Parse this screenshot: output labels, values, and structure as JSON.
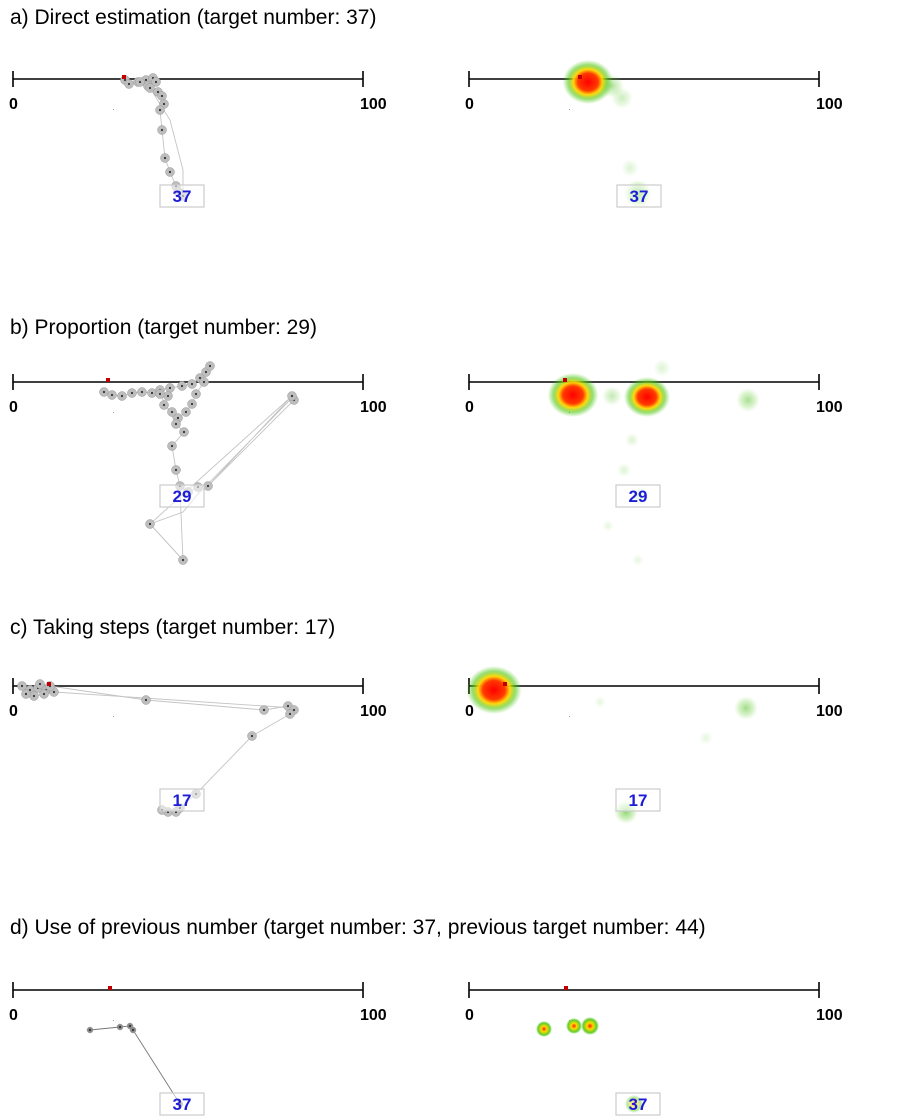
{
  "panels": [
    {
      "id": "a",
      "title": "a) Direct estimation (target number: 37)",
      "axis_min_label": "0",
      "axis_max_label": "100",
      "target_label": "37",
      "scanpath": [
        [
          125,
          80
        ],
        [
          129,
          84
        ],
        [
          138,
          82
        ],
        [
          146,
          80
        ],
        [
          153,
          78
        ],
        [
          156,
          82
        ],
        [
          148,
          86
        ],
        [
          140,
          82
        ],
        [
          150,
          88
        ],
        [
          158,
          92
        ],
        [
          162,
          96
        ],
        [
          164,
          104
        ],
        [
          160,
          110
        ],
        [
          162,
          130
        ],
        [
          165,
          158
        ],
        [
          170,
          172
        ],
        [
          176,
          186
        ],
        [
          180,
          193
        ],
        [
          183,
          196
        ],
        [
          178,
          192
        ]
      ],
      "extra_path": [
        [
          150,
          88
        ],
        [
          170,
          120
        ],
        [
          183,
          170
        ],
        [
          183,
          196
        ]
      ],
      "heat": [
        {
          "x": 588,
          "y": 82,
          "r": 22,
          "a": 1.0,
          "core": true
        },
        {
          "x": 612,
          "y": 86,
          "r": 12,
          "a": 0.45
        },
        {
          "x": 622,
          "y": 98,
          "r": 11,
          "a": 0.3
        },
        {
          "x": 630,
          "y": 168,
          "r": 9,
          "a": 0.2
        },
        {
          "x": 638,
          "y": 194,
          "r": 14,
          "a": 0.8
        }
      ]
    },
    {
      "id": "b",
      "title": "b) Proportion (target number: 29)",
      "axis_min_label": "0",
      "axis_max_label": "100",
      "target_label": "29",
      "scanpath": [
        [
          104,
          392
        ],
        [
          112,
          395
        ],
        [
          122,
          396
        ],
        [
          132,
          393
        ],
        [
          142,
          392
        ],
        [
          152,
          393
        ],
        [
          160,
          390
        ],
        [
          170,
          388
        ],
        [
          182,
          386
        ],
        [
          192,
          384
        ],
        [
          200,
          378
        ],
        [
          206,
          372
        ],
        [
          210,
          366
        ],
        [
          204,
          382
        ],
        [
          196,
          394
        ],
        [
          192,
          404
        ],
        [
          186,
          412
        ],
        [
          178,
          418
        ],
        [
          172,
          412
        ],
        [
          164,
          405
        ],
        [
          168,
          396
        ],
        [
          160,
          394
        ],
        [
          176,
          424
        ],
        [
          184,
          432
        ],
        [
          172,
          446
        ],
        [
          176,
          470
        ],
        [
          180,
          486
        ],
        [
          188,
          492
        ],
        [
          198,
          487
        ],
        [
          208,
          486
        ],
        [
          294,
          400
        ],
        [
          292,
          396
        ],
        [
          150,
          524
        ],
        [
          183,
          560
        ]
      ],
      "extra_path": [
        [
          208,
          486
        ],
        [
          292,
          396
        ],
        [
          290,
          400
        ],
        [
          198,
          494
        ],
        [
          183,
          512
        ],
        [
          150,
          524
        ],
        [
          183,
          560
        ],
        [
          180,
          490
        ]
      ],
      "heat": [
        {
          "x": 573,
          "y": 395,
          "r": 22,
          "a": 1.0,
          "core": true
        },
        {
          "x": 647,
          "y": 397,
          "r": 20,
          "a": 1.0,
          "core": true
        },
        {
          "x": 612,
          "y": 396,
          "r": 10,
          "a": 0.35
        },
        {
          "x": 662,
          "y": 368,
          "r": 9,
          "a": 0.2
        },
        {
          "x": 748,
          "y": 400,
          "r": 12,
          "a": 0.5
        },
        {
          "x": 632,
          "y": 440,
          "r": 7,
          "a": 0.2
        },
        {
          "x": 624,
          "y": 470,
          "r": 7,
          "a": 0.2
        },
        {
          "x": 640,
          "y": 496,
          "r": 10,
          "a": 0.35
        },
        {
          "x": 608,
          "y": 526,
          "r": 6,
          "a": 0.15
        },
        {
          "x": 638,
          "y": 560,
          "r": 6,
          "a": 0.15
        }
      ]
    },
    {
      "id": "c",
      "title": "c) Taking steps (target number: 17)",
      "axis_min_label": "0",
      "axis_max_label": "100",
      "target_label": "17",
      "scanpath": [
        [
          22,
          686
        ],
        [
          30,
          690
        ],
        [
          38,
          688
        ],
        [
          46,
          690
        ],
        [
          54,
          692
        ],
        [
          44,
          694
        ],
        [
          34,
          696
        ],
        [
          26,
          694
        ],
        [
          40,
          684
        ],
        [
          50,
          686
        ],
        [
          146,
          700
        ],
        [
          264,
          710
        ],
        [
          288,
          706
        ],
        [
          294,
          710
        ],
        [
          290,
          714
        ],
        [
          252,
          736
        ],
        [
          196,
          794
        ],
        [
          180,
          808
        ],
        [
          168,
          812
        ],
        [
          162,
          810
        ],
        [
          176,
          812
        ]
      ],
      "extra_path": [
        [
          54,
          692
        ],
        [
          294,
          708
        ]
      ],
      "heat": [
        {
          "x": 494,
          "y": 690,
          "r": 24,
          "a": 1.0,
          "core": true
        },
        {
          "x": 600,
          "y": 702,
          "r": 6,
          "a": 0.15
        },
        {
          "x": 706,
          "y": 738,
          "r": 7,
          "a": 0.15
        },
        {
          "x": 746,
          "y": 708,
          "r": 12,
          "a": 0.55
        },
        {
          "x": 626,
          "y": 812,
          "r": 12,
          "a": 0.65
        }
      ]
    },
    {
      "id": "d",
      "title": "d) Use of previous number (target number: 37, previous target number: 44)",
      "axis_min_label": "0",
      "axis_max_label": "100",
      "target_label": "37",
      "scanpath": [
        [
          90,
          1030
        ],
        [
          120,
          1027
        ],
        [
          130,
          1026
        ],
        [
          133,
          1030
        ],
        [
          180,
          1104
        ]
      ],
      "extra_path": [],
      "heat": [
        {
          "x": 544,
          "y": 1029,
          "r": 8,
          "a": 1.0,
          "ring": true
        },
        {
          "x": 574,
          "y": 1026,
          "r": 8,
          "a": 1.0,
          "ring": true
        },
        {
          "x": 590,
          "y": 1026,
          "r": 9,
          "a": 1.0,
          "ring": true
        },
        {
          "x": 634,
          "y": 1104,
          "r": 9,
          "a": 1.0,
          "ring": true
        }
      ]
    }
  ],
  "layout_rows": [
    {
      "title_y": 6,
      "axis_y": 79
    },
    {
      "title_y": 316,
      "axis_y": 382
    },
    {
      "title_y": 616,
      "axis_y": 686
    },
    {
      "title_y": 916,
      "axis_y": 990
    }
  ],
  "colors": {
    "scanpath_fill": "#bdbdbd",
    "scanpath_dark": "#333333",
    "target_text": "#1d1dd8",
    "target_box": "#cccccc",
    "heat_core": "#ff0000",
    "heat_mid": "#ffd800",
    "heat_outer": "#4fc814",
    "cursor_marker": "#c00000"
  }
}
